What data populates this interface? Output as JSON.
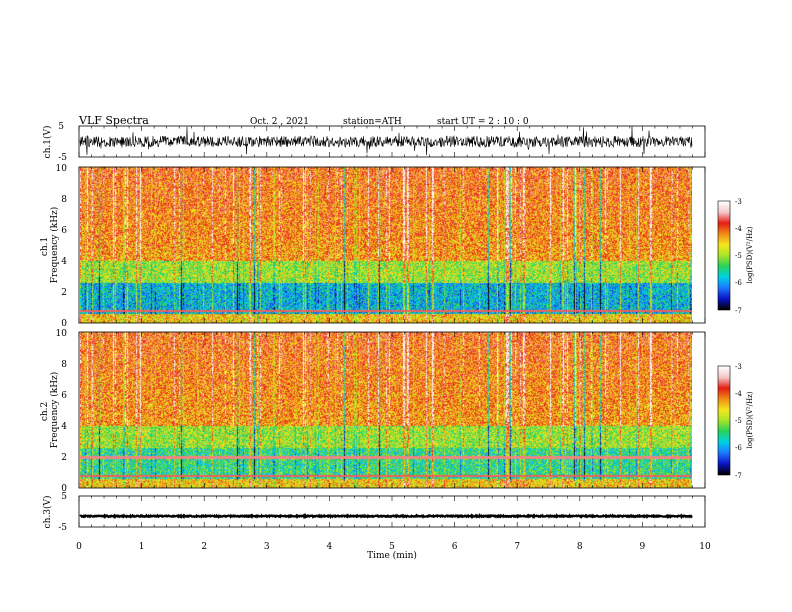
{
  "header": {
    "title": "VLF  Spectra",
    "date": "Oct. 2  , 2021",
    "station": "station=ATH",
    "start": "start  UT  =   2  : 10 : 0"
  },
  "colors": {
    "scale": [
      "#000000",
      "#0a14c8",
      "#1e78ff",
      "#00d2e6",
      "#28d25a",
      "#a8e628",
      "#f5e61e",
      "#f08c19",
      "#e61e14",
      "#f5c8c8",
      "#ffffff"
    ],
    "trace": "#000000"
  },
  "chart_data": [
    {
      "type": "line",
      "name": "ch1-waveform",
      "ylabel": "ch.1(V)",
      "ylim": [
        -5,
        5
      ],
      "yticks": [
        "5",
        "-5"
      ],
      "xlim": [
        0,
        10
      ],
      "baseline": 0,
      "spread": 1.8
    },
    {
      "type": "heatmap",
      "name": "ch1-spectrogram",
      "ylabel": "ch.1\nFrequency  (kHz)",
      "ylim": [
        0,
        10
      ],
      "yticks": [
        "0",
        "2",
        "4",
        "6",
        "8",
        "10"
      ],
      "xlim": [
        0,
        10
      ],
      "data_end_min": 9.8,
      "colorbar": {
        "label": "log(PSD)(V²/Hz)",
        "range": [
          -7,
          -3
        ],
        "ticks": [
          "-3",
          "-4",
          "-5",
          "-6",
          "-7"
        ]
      }
    },
    {
      "type": "heatmap",
      "name": "ch2-spectrogram",
      "ylabel": "ch.2\nFrequency  (kHz)",
      "ylim": [
        0,
        10
      ],
      "yticks": [
        "0",
        "2",
        "4",
        "6",
        "8",
        "10"
      ],
      "xlim": [
        0,
        10
      ],
      "data_end_min": 9.8,
      "colorbar": {
        "label": "log(PSD)(V²/Hz)",
        "range": [
          -7,
          -3
        ],
        "ticks": [
          "-3",
          "-4",
          "-5",
          "-6",
          "-7"
        ]
      }
    },
    {
      "type": "line",
      "name": "ch3-waveform",
      "ylabel": "ch.3(V)",
      "ylim": [
        -5,
        5
      ],
      "yticks": [
        "5",
        "-5"
      ],
      "xlim": [
        0,
        10
      ],
      "baseline": -1.5,
      "spread": 0.2,
      "xlabel": "Time  (min)",
      "xticks": [
        "0",
        "1",
        "2",
        "3",
        "4",
        "5",
        "6",
        "7",
        "8",
        "9",
        "10"
      ]
    }
  ]
}
